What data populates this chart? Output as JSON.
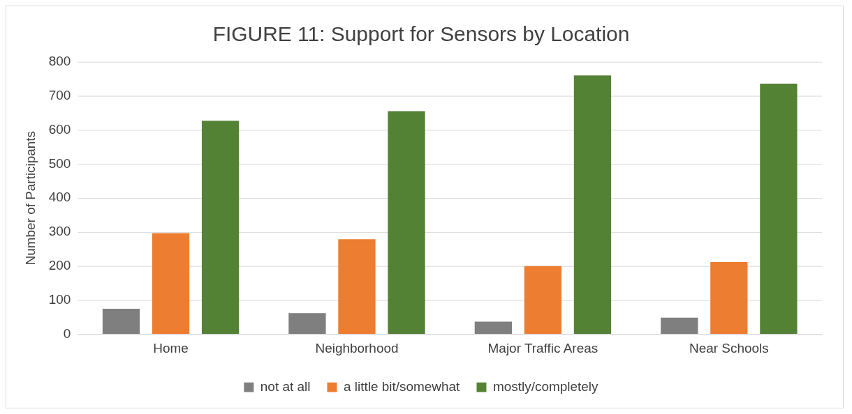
{
  "chart_data": {
    "type": "bar",
    "title": "FIGURE 11: Support for Sensors by Location",
    "ylabel": "Number of Participants",
    "categories": [
      "Home",
      "Neighborhood",
      "Major Traffic Areas",
      "Near Schools"
    ],
    "series": [
      {
        "name": "not at all",
        "color": "#7f7f7f",
        "values": [
          75,
          62,
          37,
          49
        ]
      },
      {
        "name": "a little bit/somewhat",
        "color": "#ed7d31",
        "values": [
          297,
          279,
          200,
          212
        ]
      },
      {
        "name": "mostly/completely",
        "color": "#548235",
        "values": [
          627,
          655,
          760,
          736
        ]
      }
    ],
    "ylim": [
      0,
      800
    ],
    "yticks": [
      0,
      100,
      200,
      300,
      400,
      500,
      600,
      700,
      800
    ],
    "grid": "y",
    "legend": "bottom"
  }
}
